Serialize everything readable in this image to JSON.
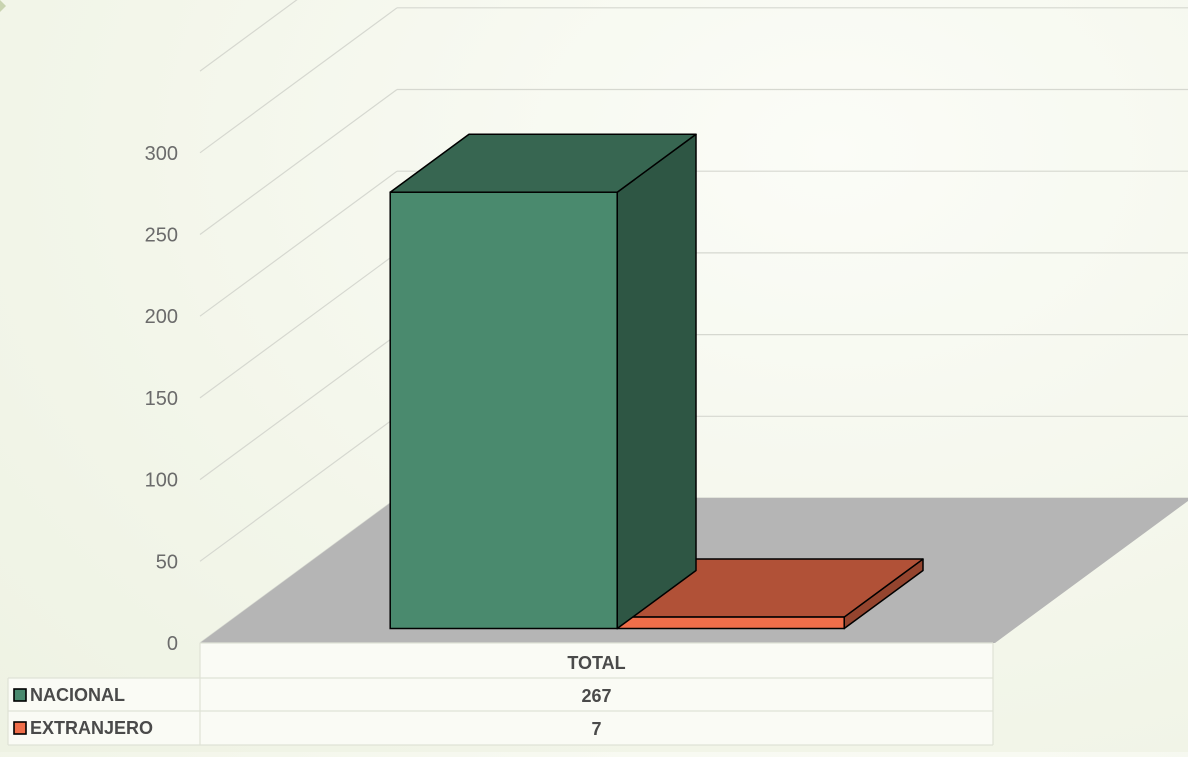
{
  "chart_data": {
    "type": "bar",
    "categories": [
      "TOTAL"
    ],
    "series": [
      {
        "name": "NACIONAL",
        "values": [
          267
        ],
        "color": "#4a8a6e"
      },
      {
        "name": "EXTRANJERO",
        "values": [
          7
        ],
        "color": "#ef6e4a"
      }
    ],
    "ylim": [
      0,
      300
    ],
    "yticks": [
      "0",
      "50",
      "100",
      "150",
      "200",
      "250",
      "300"
    ],
    "grid": true,
    "legend": "data-table-left",
    "three_d": true,
    "floor_color": "#b5b5b5"
  }
}
